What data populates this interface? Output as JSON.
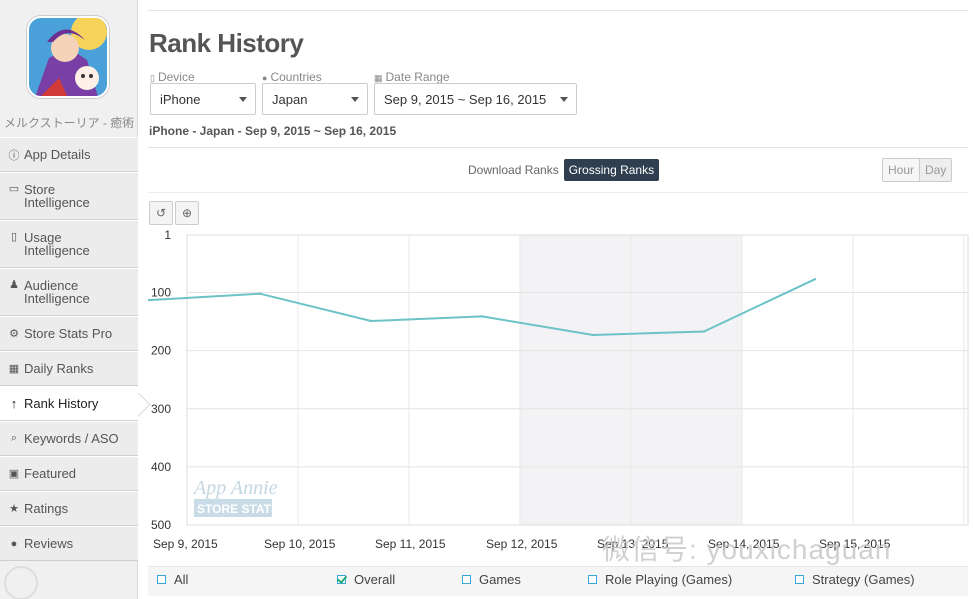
{
  "sidebar": {
    "app_name": "メルクストーリア - 癒術…",
    "items": [
      {
        "label": "App Details",
        "icon": "info-icon"
      },
      {
        "label": "Store\nIntelligence",
        "icon": "store-icon"
      },
      {
        "label": "Usage\nIntelligence",
        "icon": "usage-icon"
      },
      {
        "label": "Audience\nIntelligence",
        "icon": "person-icon"
      },
      {
        "label": "Store Stats Pro",
        "icon": "gear-icon"
      },
      {
        "label": "Daily Ranks",
        "icon": "calendar-icon"
      },
      {
        "label": "Rank History",
        "icon": "arrow-up-icon"
      },
      {
        "label": "Keywords / ASO",
        "icon": "keyword-icon"
      },
      {
        "label": "Featured",
        "icon": "featured-icon"
      },
      {
        "label": "Ratings",
        "icon": "star-icon"
      },
      {
        "label": "Reviews",
        "icon": "comment-icon"
      }
    ]
  },
  "header": {
    "title": "Rank History"
  },
  "filters": {
    "device_label": "Device",
    "device_value": "iPhone",
    "countries_label": "Countries",
    "countries_value": "Japan",
    "date_label": "Date Range",
    "date_value": "Sep 9, 2015 ~ Sep 16, 2015"
  },
  "subtitle": "iPhone - Japan - Sep 9, 2015 ~ Sep 16, 2015",
  "tabs": {
    "download": "Download Ranks",
    "grossing": "Grossing Ranks"
  },
  "granularity": {
    "hour": "Hour",
    "day": "Day"
  },
  "chart_data": {
    "type": "line",
    "x": [
      "Sep 9, 2015",
      "Sep 10, 2015",
      "Sep 11, 2015",
      "Sep 12, 2015",
      "Sep 13, 2015",
      "Sep 14, 2015",
      "Sep 15, 2015"
    ],
    "series": [
      {
        "values": [
          113,
          102,
          149,
          141,
          173,
          167,
          77
        ]
      }
    ],
    "ylim": [
      1,
      500
    ],
    "y_reversed": true,
    "yticks": [
      "1",
      "100",
      "200",
      "300",
      "400",
      "500"
    ],
    "grid": true,
    "line_color": "#6cc3c7",
    "weekend_shading": [
      "Sep 12, 2015",
      "Sep 13, 2015"
    ]
  },
  "legend": [
    {
      "label": "All",
      "checked": false
    },
    {
      "label": "Overall",
      "checked": true
    },
    {
      "label": "Games",
      "checked": false
    },
    {
      "label": "Role Playing (Games)",
      "checked": false
    },
    {
      "label": "Strategy (Games)",
      "checked": false
    }
  ],
  "watermark_badge": "App Annie STORE STATS",
  "watermark_text": "微信号: youxichaguan"
}
